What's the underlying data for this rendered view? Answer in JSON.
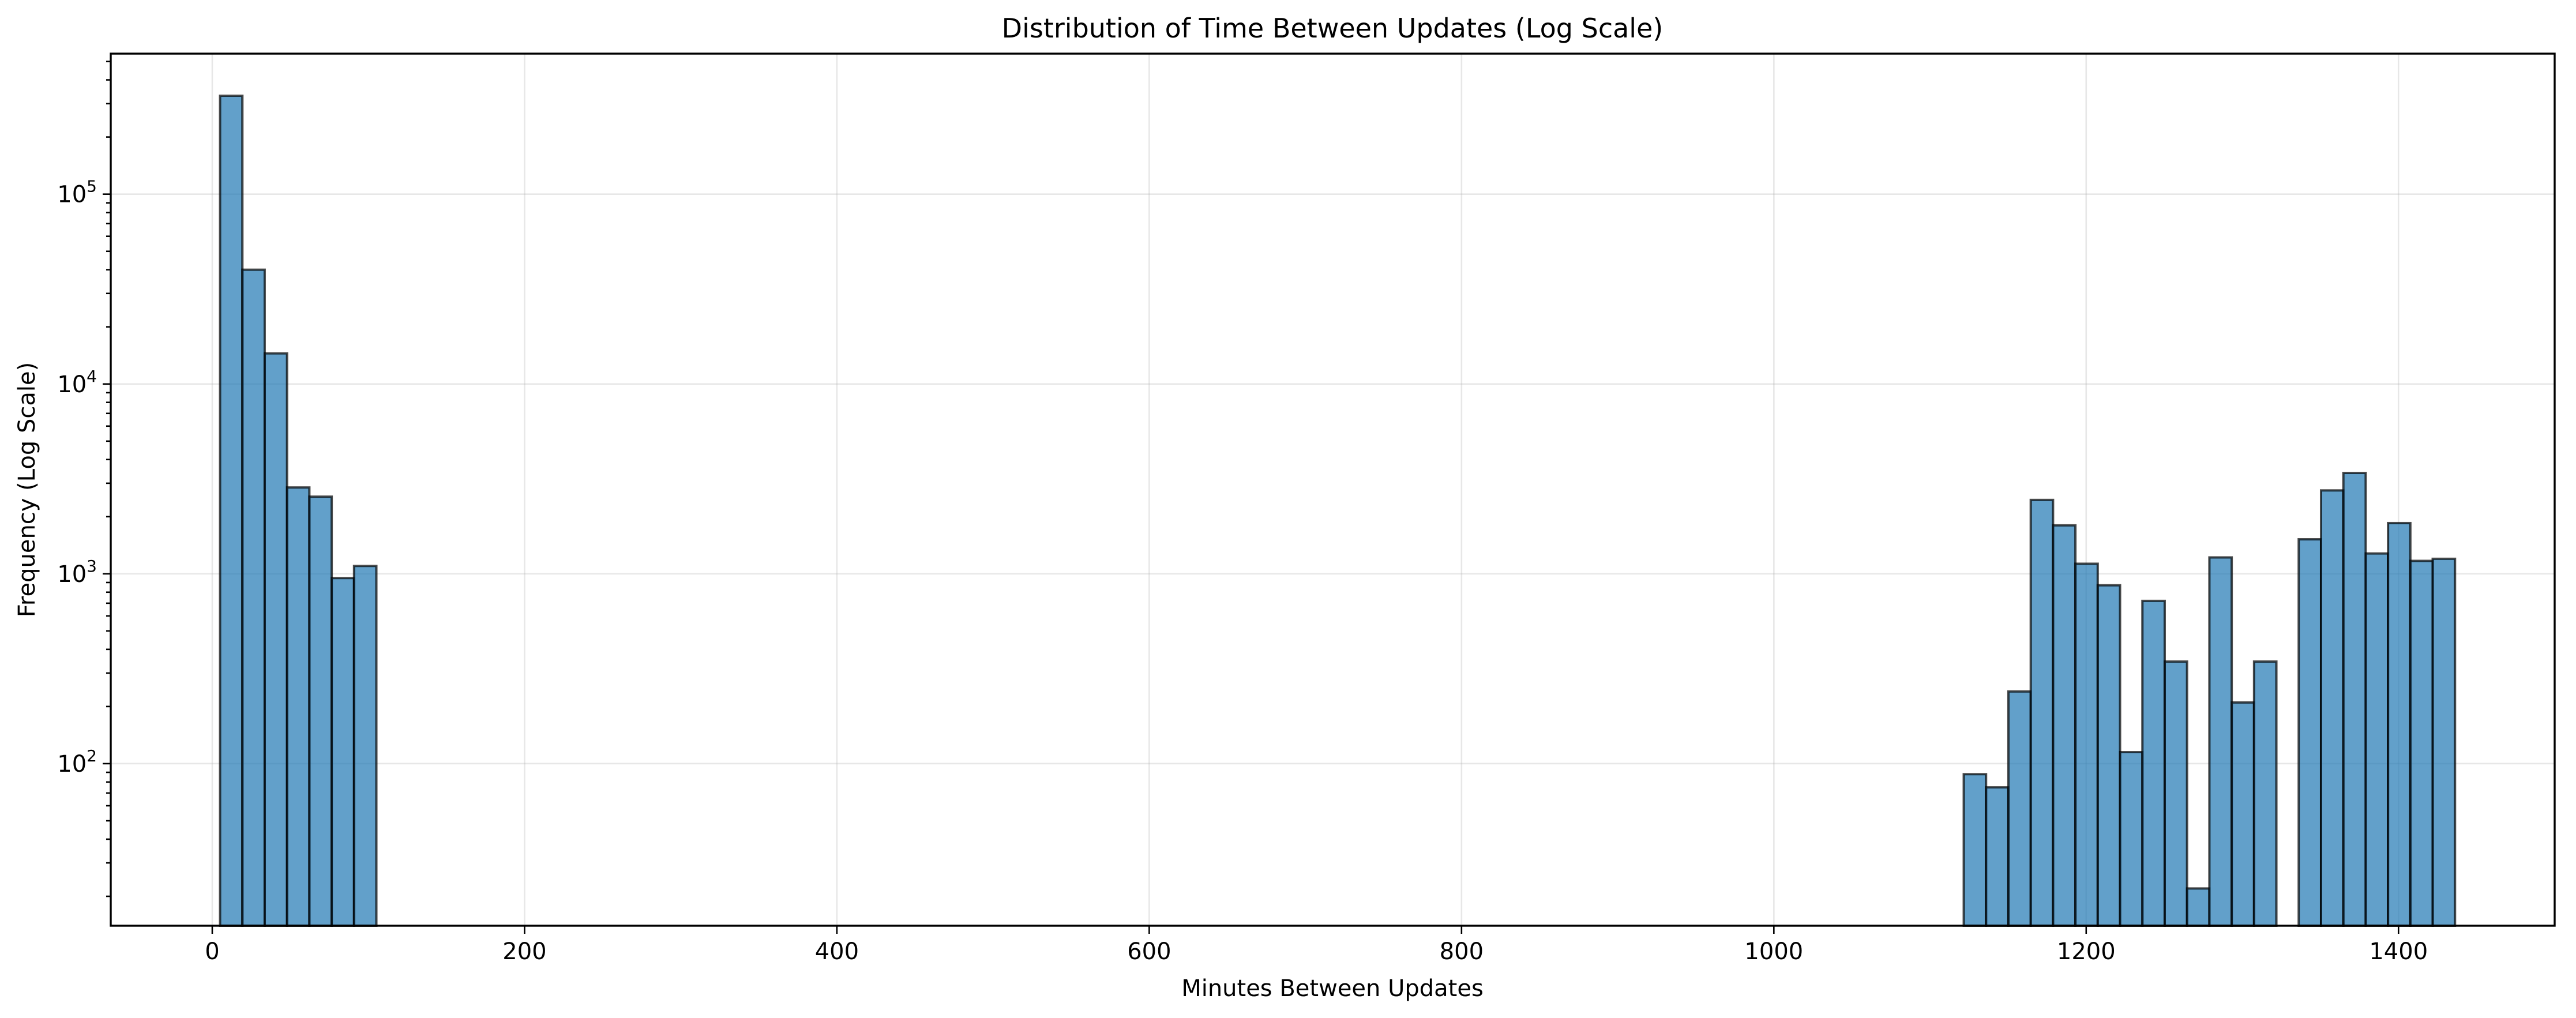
{
  "chart_data": {
    "type": "bar",
    "title": "Distribution of Time Between Updates (Log Scale)",
    "xlabel": "Minutes Between Updates",
    "ylabel": "Frequency (Log Scale)",
    "yscale": "log",
    "grid": true,
    "bar_color": "#1f77b4",
    "edge_color": "#000000",
    "xlim": [
      -65,
      1500
    ],
    "ylim": [
      14,
      550000
    ],
    "x_ticks": [
      0,
      200,
      400,
      600,
      800,
      1000,
      1200,
      1400
    ],
    "x_tick_labels": [
      "0",
      "200",
      "400",
      "600",
      "800",
      "1000",
      "1200",
      "1400"
    ],
    "y_ticks": [
      {
        "value": 100,
        "base": "10",
        "exp": "2"
      },
      {
        "value": 1000,
        "base": "10",
        "exp": "3"
      },
      {
        "value": 10000,
        "base": "10",
        "exp": "4"
      },
      {
        "value": 100000,
        "base": "10",
        "exp": "5"
      }
    ],
    "bin_width": 14.3,
    "bins": [
      {
        "x_start": 5.0,
        "value": 330000
      },
      {
        "x_start": 19.3,
        "value": 40000
      },
      {
        "x_start": 33.6,
        "value": 14500
      },
      {
        "x_start": 47.9,
        "value": 2850
      },
      {
        "x_start": 62.2,
        "value": 2550
      },
      {
        "x_start": 76.5,
        "value": 950
      },
      {
        "x_start": 90.8,
        "value": 1100
      },
      {
        "x_start": 1121.6,
        "value": 88
      },
      {
        "x_start": 1135.9,
        "value": 75
      },
      {
        "x_start": 1150.2,
        "value": 240
      },
      {
        "x_start": 1164.5,
        "value": 2450
      },
      {
        "x_start": 1178.8,
        "value": 1800
      },
      {
        "x_start": 1193.1,
        "value": 1130
      },
      {
        "x_start": 1207.4,
        "value": 870
      },
      {
        "x_start": 1221.7,
        "value": 115
      },
      {
        "x_start": 1236.0,
        "value": 720
      },
      {
        "x_start": 1250.3,
        "value": 345
      },
      {
        "x_start": 1264.6,
        "value": 22
      },
      {
        "x_start": 1278.9,
        "value": 1220
      },
      {
        "x_start": 1293.2,
        "value": 210
      },
      {
        "x_start": 1307.5,
        "value": 345
      },
      {
        "x_start": 1336.1,
        "value": 1520
      },
      {
        "x_start": 1350.4,
        "value": 2750
      },
      {
        "x_start": 1364.7,
        "value": 3400
      },
      {
        "x_start": 1379.0,
        "value": 1280
      },
      {
        "x_start": 1393.3,
        "value": 1850
      },
      {
        "x_start": 1407.6,
        "value": 1170
      },
      {
        "x_start": 1421.9,
        "value": 1200
      }
    ]
  }
}
